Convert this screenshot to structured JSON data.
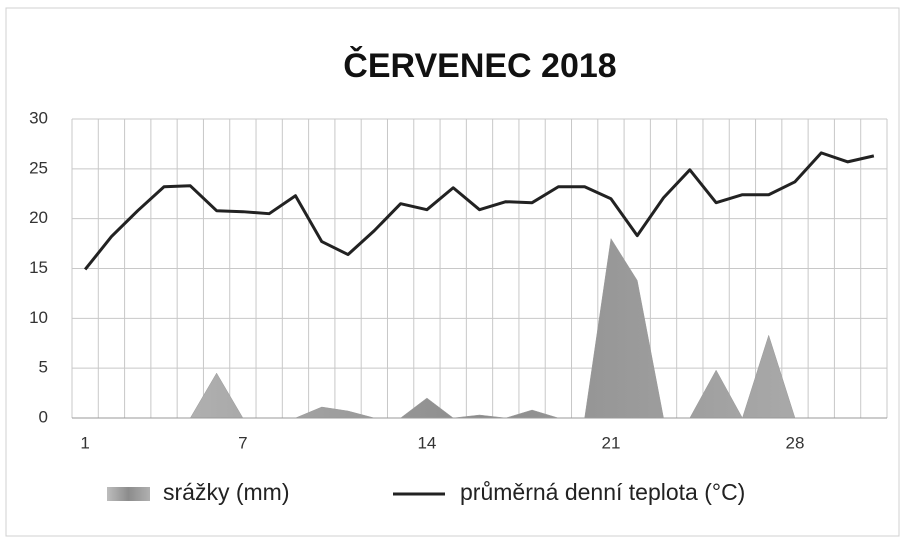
{
  "chart_data": {
    "type": "area_line",
    "title": "ČERVENEC 2018",
    "categories": [
      "1",
      null,
      null,
      null,
      null,
      null,
      "7",
      null,
      null,
      null,
      null,
      null,
      null,
      "14",
      null,
      null,
      null,
      null,
      null,
      null,
      "21",
      null,
      null,
      null,
      null,
      null,
      null,
      "28",
      null,
      null,
      null
    ],
    "series": [
      {
        "name": "srážky (mm)",
        "type": "area",
        "color": "#9a9a9a",
        "values": [
          0,
          0,
          0,
          0,
          0,
          4.5,
          0,
          0,
          0,
          1.1,
          0.7,
          0,
          0,
          2,
          0,
          0.3,
          0,
          0.8,
          0,
          0,
          18,
          13.8,
          0,
          0,
          4.8,
          0,
          8.3,
          0,
          0,
          0,
          0
        ]
      },
      {
        "name": "průměrná denní teplota (°C)",
        "type": "line",
        "color": "#222222",
        "values": [
          14.9,
          18.2,
          20.8,
          23.2,
          23.3,
          20.8,
          20.7,
          20.5,
          22.3,
          17.7,
          16.4,
          18.8,
          21.5,
          20.9,
          23.1,
          20.9,
          21.7,
          21.6,
          23.2,
          23.2,
          22.0,
          18.3,
          22.1,
          24.9,
          21.6,
          22.4,
          22.4,
          23.7,
          26.6,
          25.7,
          26.3
        ]
      }
    ],
    "ylim": [
      0,
      30
    ],
    "yticks": [
      0,
      5,
      10,
      15,
      20,
      25,
      30
    ],
    "grid": true,
    "legend": "bottom"
  }
}
